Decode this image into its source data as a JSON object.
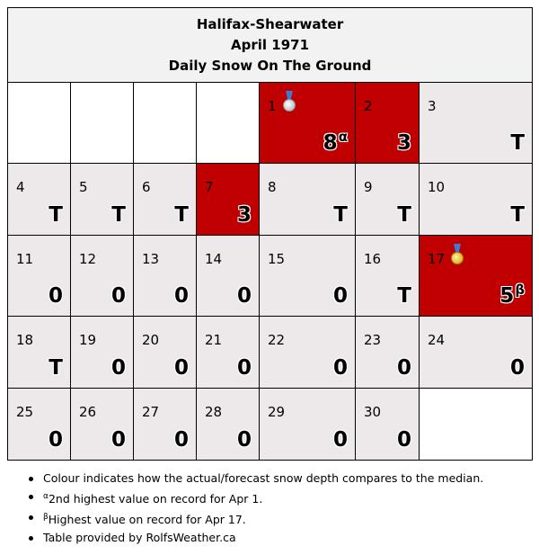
{
  "header": {
    "station": "Halifax-Shearwater",
    "period": "April 1971",
    "metric": "Daily Snow On The Ground"
  },
  "colors": {
    "normal_cell": "#ede8e9",
    "above_median_cell": "#c00000",
    "blank_cell": "#ffffff",
    "header_bg": "#f2f2f2"
  },
  "weeks": [
    [
      {
        "day": "",
        "value": "",
        "style": "blank"
      },
      {
        "day": "",
        "value": "",
        "style": "blank"
      },
      {
        "day": "",
        "value": "",
        "style": "blank"
      },
      {
        "day": "",
        "value": "",
        "style": "blank"
      },
      {
        "day": "1",
        "value": "8",
        "sup": "α",
        "style": "high",
        "medal": "silver-medal-icon"
      },
      {
        "day": "2",
        "value": "3",
        "style": "high"
      },
      {
        "day": "3",
        "value": "T",
        "style": "norm"
      }
    ],
    [
      {
        "day": "4",
        "value": "T",
        "style": "norm"
      },
      {
        "day": "5",
        "value": "T",
        "style": "norm"
      },
      {
        "day": "6",
        "value": "T",
        "style": "norm"
      },
      {
        "day": "7",
        "value": "3",
        "style": "high"
      },
      {
        "day": "8",
        "value": "T",
        "style": "norm"
      },
      {
        "day": "9",
        "value": "T",
        "style": "norm"
      },
      {
        "day": "10",
        "value": "T",
        "style": "norm"
      }
    ],
    [
      {
        "day": "11",
        "value": "0",
        "style": "norm"
      },
      {
        "day": "12",
        "value": "0",
        "style": "norm"
      },
      {
        "day": "13",
        "value": "0",
        "style": "norm"
      },
      {
        "day": "14",
        "value": "0",
        "style": "norm"
      },
      {
        "day": "15",
        "value": "0",
        "style": "norm"
      },
      {
        "day": "16",
        "value": "T",
        "style": "norm"
      },
      {
        "day": "17",
        "value": "5",
        "sup": "β",
        "style": "high",
        "medal": "gold-medal-icon"
      }
    ],
    [
      {
        "day": "18",
        "value": "T",
        "style": "norm"
      },
      {
        "day": "19",
        "value": "0",
        "style": "norm"
      },
      {
        "day": "20",
        "value": "0",
        "style": "norm"
      },
      {
        "day": "21",
        "value": "0",
        "style": "norm"
      },
      {
        "day": "22",
        "value": "0",
        "style": "norm"
      },
      {
        "day": "23",
        "value": "0",
        "style": "norm"
      },
      {
        "day": "24",
        "value": "0",
        "style": "norm"
      }
    ],
    [
      {
        "day": "25",
        "value": "0",
        "style": "norm"
      },
      {
        "day": "26",
        "value": "0",
        "style": "norm"
      },
      {
        "day": "27",
        "value": "0",
        "style": "norm"
      },
      {
        "day": "28",
        "value": "0",
        "style": "norm"
      },
      {
        "day": "29",
        "value": "0",
        "style": "norm"
      },
      {
        "day": "30",
        "value": "0",
        "style": "norm"
      },
      {
        "day": "",
        "value": "",
        "style": "blank"
      }
    ]
  ],
  "notes": [
    {
      "sup": "",
      "text": "Colour indicates how the actual/forecast snow depth compares to the median."
    },
    {
      "sup": "α",
      "text": "2nd highest value on record for Apr 1."
    },
    {
      "sup": "β",
      "text": "Highest value on record for Apr 17."
    },
    {
      "sup": "",
      "text": "Table provided by RolfsWeather.ca"
    }
  ]
}
